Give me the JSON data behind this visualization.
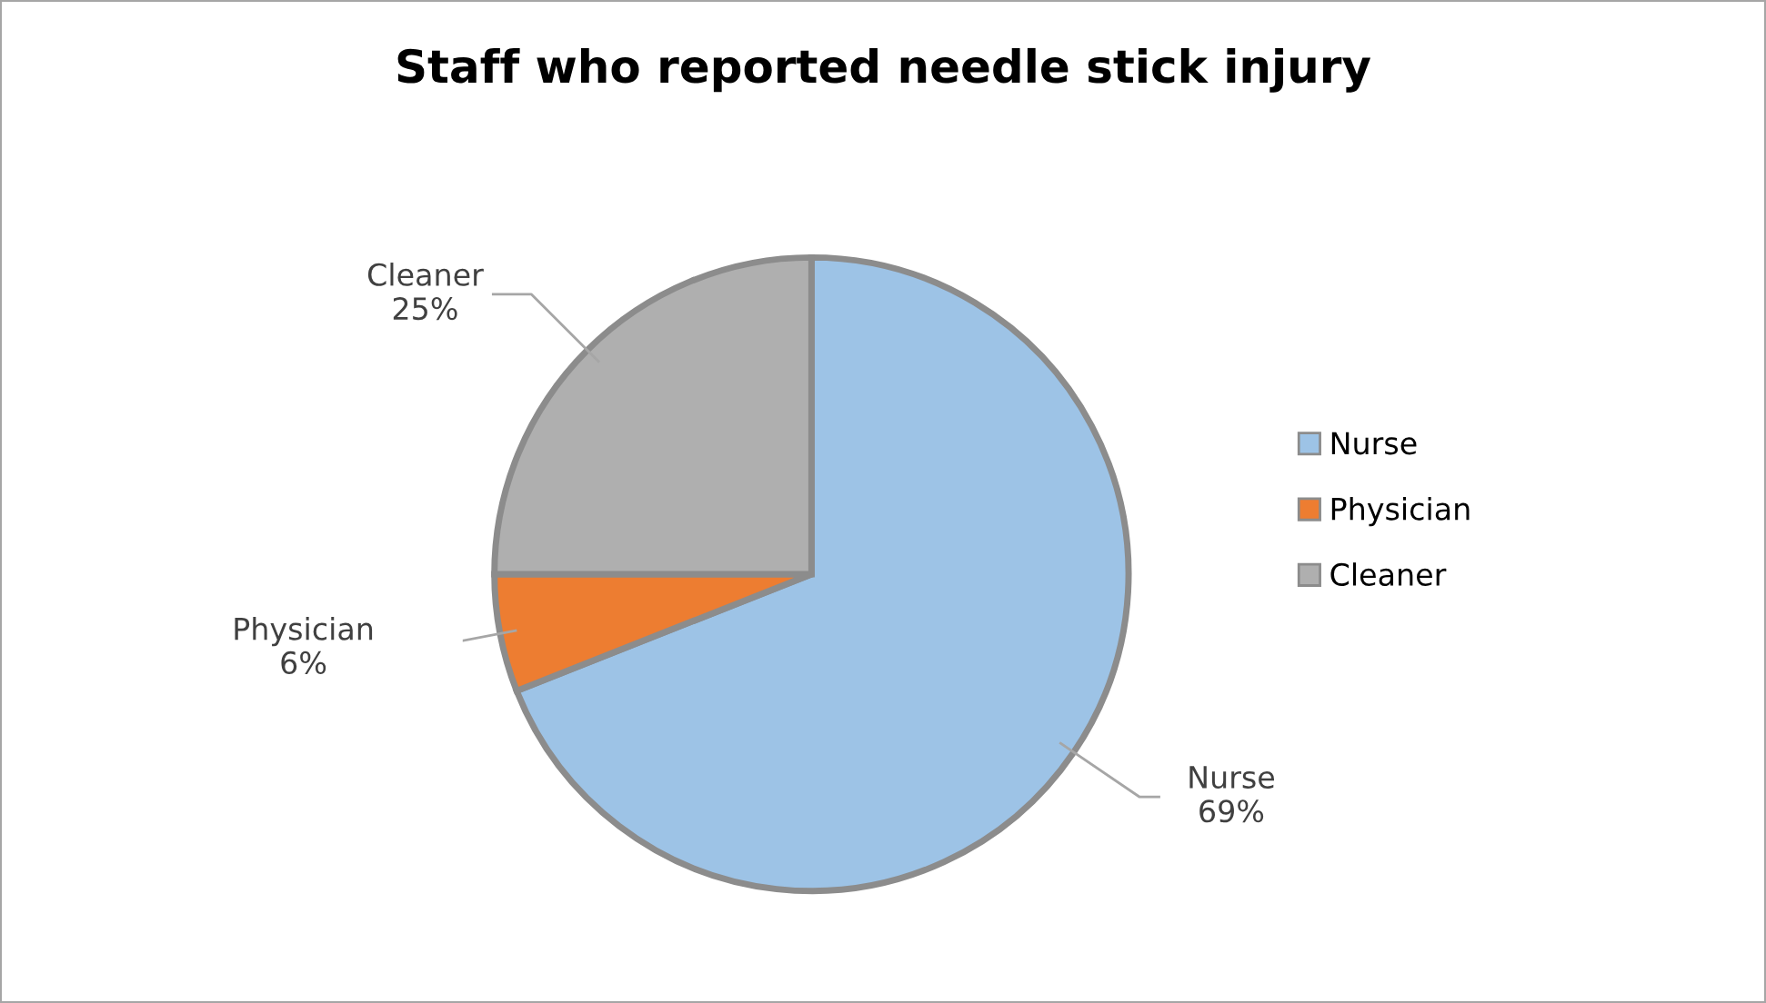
{
  "chart_data": {
    "type": "pie",
    "title": "Staff who reported needle stick injury",
    "categories": [
      "Nurse",
      "Physician",
      "Cleaner"
    ],
    "values": [
      69,
      6,
      25
    ],
    "value_labels": [
      "69%",
      "6%",
      "25%"
    ],
    "colors": [
      "#9dc3e6",
      "#ed7d31",
      "#afafaf"
    ],
    "legend": "right"
  }
}
